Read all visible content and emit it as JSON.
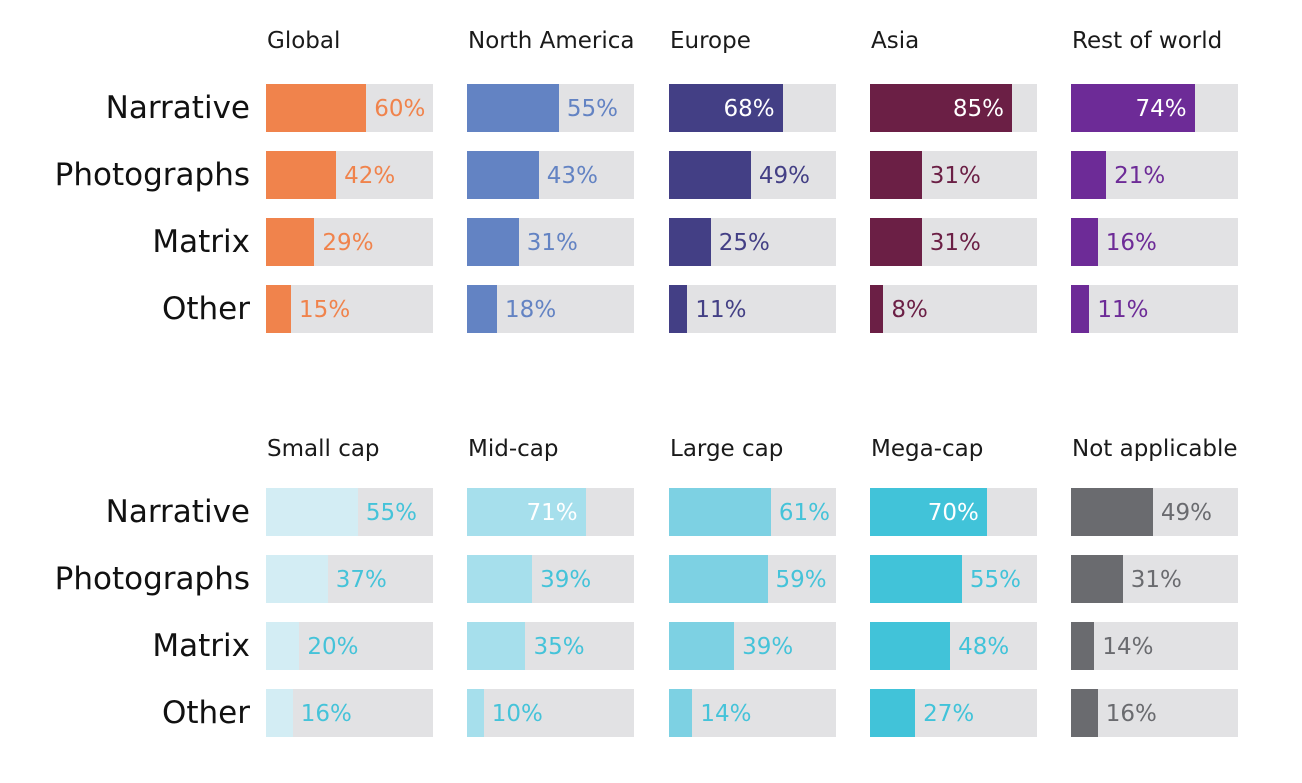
{
  "chart_data": [
    {
      "type": "bar",
      "group": "region",
      "categories": [
        "Narrative",
        "Photographs",
        "Matrix",
        "Other"
      ],
      "value_suffix": "%",
      "xlim": [
        0,
        100
      ],
      "series": [
        {
          "name": "Global",
          "values": [
            60,
            42,
            29,
            15
          ],
          "color": "#f0834c",
          "label_color": "#f0834c",
          "inside_label_color": "#ffffff"
        },
        {
          "name": "North America",
          "values": [
            55,
            43,
            31,
            18
          ],
          "color": "#6383c3",
          "label_color": "#6383c3",
          "inside_label_color": "#ffffff"
        },
        {
          "name": "Europe",
          "values": [
            68,
            49,
            25,
            11
          ],
          "color": "#433f85",
          "label_color": "#433f85",
          "inside_label_color": "#ffffff"
        },
        {
          "name": "Asia",
          "values": [
            85,
            31,
            31,
            8
          ],
          "color": "#6b1f45",
          "label_color": "#6b1f45",
          "inside_label_color": "#ffffff"
        },
        {
          "name": "Rest of world",
          "values": [
            74,
            21,
            16,
            11
          ],
          "color": "#6d2b97",
          "label_color": "#6d2b97",
          "inside_label_color": "#ffffff"
        }
      ]
    },
    {
      "type": "bar",
      "group": "market-cap",
      "categories": [
        "Narrative",
        "Photographs",
        "Matrix",
        "Other"
      ],
      "value_suffix": "%",
      "xlim": [
        0,
        100
      ],
      "series": [
        {
          "name": "Small cap",
          "values": [
            55,
            37,
            20,
            16
          ],
          "color": "#d3edf4",
          "label_color": "#45c3d9",
          "inside_label_color": "#ffffff"
        },
        {
          "name": "Mid-cap",
          "values": [
            71,
            39,
            35,
            10
          ],
          "color": "#a6dfec",
          "label_color": "#45c3d9",
          "inside_label_color": "#ffffff"
        },
        {
          "name": "Large cap",
          "values": [
            61,
            59,
            39,
            14
          ],
          "color": "#7dd1e3",
          "label_color": "#45c3d9",
          "inside_label_color": "#ffffff"
        },
        {
          "name": "Mega-cap",
          "values": [
            70,
            55,
            48,
            27
          ],
          "color": "#41c3d9",
          "label_color": "#41c3d9",
          "inside_label_color": "#ffffff"
        },
        {
          "name": "Not applicable",
          "values": [
            49,
            31,
            14,
            16
          ],
          "color": "#6a6b6f",
          "label_color": "#6a6b6f",
          "inside_label_color": "#ffffff"
        }
      ]
    }
  ]
}
